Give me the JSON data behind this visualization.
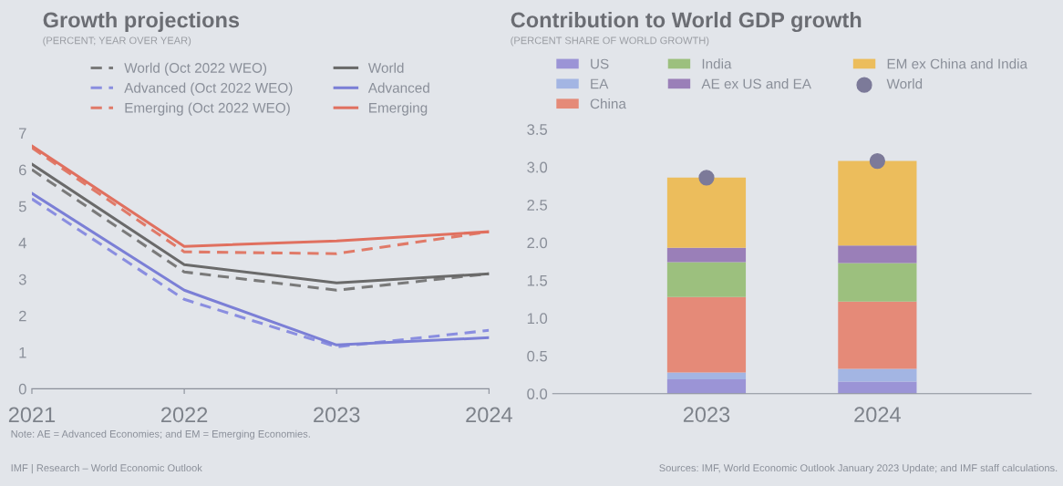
{
  "chart_data": [
    {
      "type": "line",
      "title": "Growth projections",
      "subtitle": "(PERCENT; YEAR OVER YEAR)",
      "x": [
        2021,
        2022,
        2023,
        2024
      ],
      "xlim": [
        2021,
        2024
      ],
      "xticks": [
        2021,
        2022,
        2023,
        2024
      ],
      "ylim": [
        0,
        7
      ],
      "yticks": [
        0,
        1,
        2,
        3,
        4,
        5,
        6,
        7
      ],
      "grid": false,
      "legend": "top",
      "marker": "none",
      "series": [
        {
          "name": "World (Oct 2022 WEO)",
          "color": "#7a7a7a",
          "line_style": "dashed",
          "values": [
            6.0,
            3.2,
            2.7,
            3.15
          ]
        },
        {
          "name": "Advanced (Oct 2022 WEO)",
          "color": "#8a8ee0",
          "line_style": "dashed",
          "values": [
            5.2,
            2.45,
            1.15,
            1.6
          ]
        },
        {
          "name": "Emerging (Oct 2022 WEO)",
          "color": "#e07a68",
          "line_style": "dashed",
          "values": [
            6.6,
            3.75,
            3.7,
            4.3
          ]
        },
        {
          "name": "World",
          "color": "#6a6a6a",
          "line_style": "solid",
          "values": [
            6.15,
            3.4,
            2.9,
            3.15
          ]
        },
        {
          "name": "Advanced",
          "color": "#7b7fd6",
          "line_style": "solid",
          "values": [
            5.35,
            2.7,
            1.2,
            1.4
          ]
        },
        {
          "name": "Emerging",
          "color": "#e0705f",
          "line_style": "solid",
          "values": [
            6.65,
            3.9,
            4.05,
            4.3
          ]
        }
      ],
      "annotations": [
        "Note: AE = Advanced Economies; and EM = Emerging Economies.",
        "IMF | Research – World Economic Outlook"
      ]
    },
    {
      "type": "bar",
      "stacked": true,
      "title": "Contribution to World GDP growth",
      "subtitle": "(PERCENT SHARE OF WORLD GROWTH)",
      "categories": [
        "2023",
        "2024"
      ],
      "ylim": [
        0,
        3.5
      ],
      "yticks": [
        {
          "value": 0,
          "label": "0.0"
        },
        {
          "value": 0.5,
          "label": "0.5"
        },
        {
          "value": 1,
          "label": "1.0"
        },
        {
          "value": 1.5,
          "label": "1.5"
        },
        {
          "value": 2,
          "label": "2.0"
        },
        {
          "value": 2.5,
          "label": "2.5"
        },
        {
          "value": 3,
          "label": "3.0"
        },
        {
          "value": 3.5,
          "label": "3.5"
        }
      ],
      "grid": false,
      "legend": "top",
      "series": [
        {
          "name": "US",
          "color": "#9b94d6",
          "values": [
            0.19,
            0.16
          ]
        },
        {
          "name": "EA",
          "color": "#a3b5e3",
          "values": [
            0.09,
            0.17
          ]
        },
        {
          "name": "China",
          "color": "#e58a78",
          "values": [
            1.0,
            0.89
          ]
        },
        {
          "name": "India",
          "color": "#9cc07e",
          "values": [
            0.46,
            0.51
          ]
        },
        {
          "name": "AE ex US and EA",
          "color": "#9a7fb8",
          "values": [
            0.19,
            0.23
          ]
        },
        {
          "name": "EM ex China and India",
          "color": "#ecbd5c",
          "values": [
            0.93,
            1.12
          ]
        },
        {
          "name": "World",
          "type": "scatter",
          "marker": "circle",
          "color": "#7c7a99",
          "values": [
            2.86,
            3.08
          ]
        }
      ],
      "annotations": [
        "Sources: IMF, World Economic Outlook January 2023 Update; and IMF staff calculations."
      ]
    }
  ]
}
